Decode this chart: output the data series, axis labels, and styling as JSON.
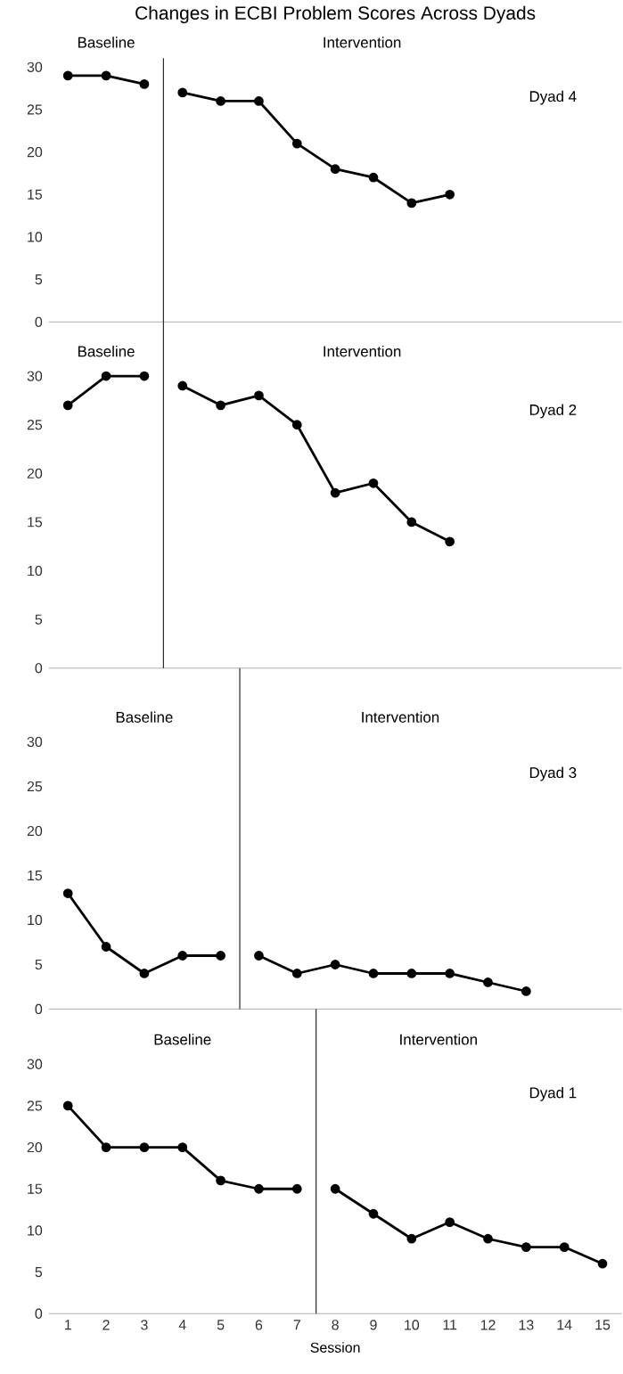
{
  "chart_data": [
    {
      "type": "line",
      "title": "Changes in ECBI Problem Scores Across Dyads",
      "xlim": [
        0.5,
        15.5
      ],
      "ylim": [
        0,
        30
      ],
      "xticks": [
        1,
        2,
        3,
        4,
        5,
        6,
        7,
        8,
        9,
        10,
        11,
        12,
        13,
        14,
        15
      ],
      "yticks": [
        0,
        5,
        10,
        15,
        20,
        25,
        30
      ],
      "tick_labels": "y",
      "marker": "circle",
      "ref_lines": [
        {
          "axis": "x",
          "value": 3.5,
          "color": "#000000"
        }
      ],
      "annotations": [
        "Baseline",
        "Intervention",
        "Dyad 4"
      ],
      "series": [
        {
          "color": "#000000",
          "x": [
            1,
            2,
            3
          ],
          "values": [
            29,
            29,
            28
          ]
        },
        {
          "color": "#000000",
          "x": [
            4,
            5,
            6,
            7,
            8,
            9,
            10,
            11
          ],
          "values": [
            27,
            26,
            26,
            21,
            18,
            17,
            14,
            15
          ]
        }
      ]
    },
    {
      "type": "line",
      "xlim": [
        0.5,
        15.5
      ],
      "ylim": [
        0,
        30
      ],
      "xticks": [
        1,
        2,
        3,
        4,
        5,
        6,
        7,
        8,
        9,
        10,
        11,
        12,
        13,
        14,
        15
      ],
      "yticks": [
        0,
        5,
        10,
        15,
        20,
        25,
        30
      ],
      "tick_labels": "y",
      "marker": "circle",
      "ref_lines": [
        {
          "axis": "x",
          "value": 3.5,
          "color": "#000000"
        }
      ],
      "annotations": [
        "Baseline",
        "Intervention",
        "Dyad 2"
      ],
      "series": [
        {
          "color": "#000000",
          "x": [
            1,
            2,
            3
          ],
          "values": [
            27,
            30,
            30
          ]
        },
        {
          "color": "#000000",
          "x": [
            4,
            5,
            6,
            7,
            8,
            9,
            10,
            11
          ],
          "values": [
            29,
            27,
            28,
            25,
            18,
            19,
            15,
            13
          ]
        }
      ]
    },
    {
      "type": "line",
      "xlim": [
        0.5,
        15.5
      ],
      "ylim": [
        0,
        30
      ],
      "xticks": [
        1,
        2,
        3,
        4,
        5,
        6,
        7,
        8,
        9,
        10,
        11,
        12,
        13,
        14,
        15
      ],
      "yticks": [
        0,
        5,
        10,
        15,
        20,
        25,
        30
      ],
      "tick_labels": "y",
      "marker": "circle",
      "ref_lines": [
        {
          "axis": "x",
          "value": 5.5,
          "color": "#000000"
        }
      ],
      "annotations": [
        "Baseline",
        "Intervention",
        "Dyad 3"
      ],
      "series": [
        {
          "color": "#000000",
          "x": [
            1,
            2,
            3,
            4,
            5
          ],
          "values": [
            13,
            7,
            4,
            6,
            6
          ]
        },
        {
          "color": "#000000",
          "x": [
            6,
            7,
            8,
            9,
            10,
            11,
            12,
            13
          ],
          "values": [
            6,
            4,
            5,
            4,
            4,
            4,
            3,
            2
          ]
        }
      ]
    },
    {
      "type": "line",
      "xlabel": "Session",
      "xlim": [
        0.5,
        15.5
      ],
      "ylim": [
        0,
        30
      ],
      "xticks": [
        1,
        2,
        3,
        4,
        5,
        6,
        7,
        8,
        9,
        10,
        11,
        12,
        13,
        14,
        15
      ],
      "yticks": [
        0,
        5,
        10,
        15,
        20,
        25,
        30
      ],
      "marker": "circle",
      "ref_lines": [
        {
          "axis": "x",
          "value": 7.5,
          "color": "#000000"
        }
      ],
      "annotations": [
        "Baseline",
        "Intervention",
        "Dyad 1"
      ],
      "series": [
        {
          "color": "#000000",
          "x": [
            1,
            2,
            3,
            4,
            5,
            6,
            7
          ],
          "values": [
            25,
            20,
            20,
            20,
            16,
            15,
            15
          ]
        },
        {
          "color": "#000000",
          "x": [
            8,
            9,
            10,
            11,
            12,
            13,
            14,
            15
          ],
          "values": [
            15,
            12,
            9,
            11,
            9,
            8,
            8,
            6
          ]
        }
      ]
    }
  ]
}
